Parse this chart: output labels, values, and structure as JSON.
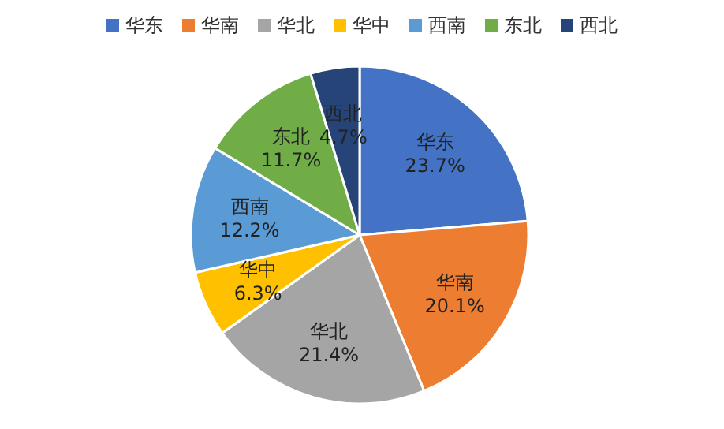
{
  "chart_data": {
    "type": "pie",
    "categories": [
      "华东",
      "华南",
      "华北",
      "华中",
      "西南",
      "东北",
      "西北"
    ],
    "values": [
      23.7,
      20.1,
      21.4,
      6.3,
      12.2,
      11.7,
      4.7
    ],
    "value_labels": [
      "23.7%",
      "20.1%",
      "21.4%",
      "6.3%",
      "12.2%",
      "11.7%",
      "4.7%"
    ],
    "colors": [
      "#4472c4",
      "#ed7d31",
      "#a5a5a5",
      "#ffc000",
      "#5b9bd5",
      "#70ad47",
      "#264478"
    ],
    "legend": "top"
  }
}
